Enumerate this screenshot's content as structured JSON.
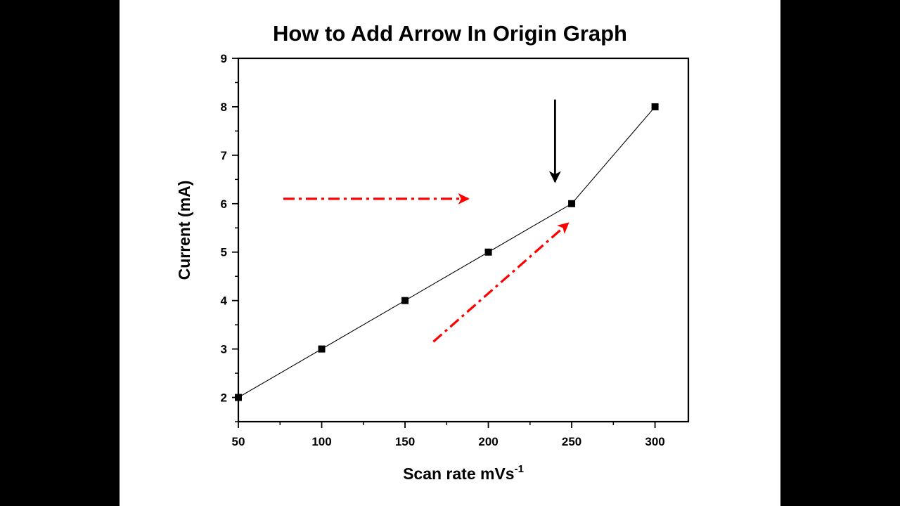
{
  "chart_data": {
    "type": "line",
    "title": "How to Add Arrow In Origin Graph",
    "xlabel": "Scan rate mVs",
    "xlabel_superscript": "-1",
    "ylabel": "Current (mA)",
    "xlim": [
      50,
      320
    ],
    "ylim": [
      1.5,
      9
    ],
    "x_ticks": [
      50,
      100,
      150,
      200,
      250,
      300
    ],
    "y_ticks": [
      2,
      3,
      4,
      5,
      6,
      7,
      8,
      9
    ],
    "grid": false,
    "legend": "none",
    "series": [
      {
        "x": [
          50,
          100,
          150,
          200,
          250,
          300
        ],
        "y": [
          2,
          3,
          4,
          5,
          6,
          8
        ],
        "marker": "square",
        "color": "#000000"
      }
    ],
    "annotations": [
      {
        "kind": "arrow",
        "style": "dash-dot",
        "color": "#ff0000",
        "from": [
          77,
          6.1
        ],
        "to": [
          188,
          6.1
        ]
      },
      {
        "kind": "arrow",
        "style": "dash-dot",
        "color": "#ff0000",
        "from": [
          167,
          3.15
        ],
        "to": [
          248,
          5.6
        ]
      },
      {
        "kind": "arrow",
        "style": "solid",
        "color": "#000000",
        "from": [
          240,
          8.15
        ],
        "to": [
          240,
          6.45
        ]
      }
    ]
  }
}
